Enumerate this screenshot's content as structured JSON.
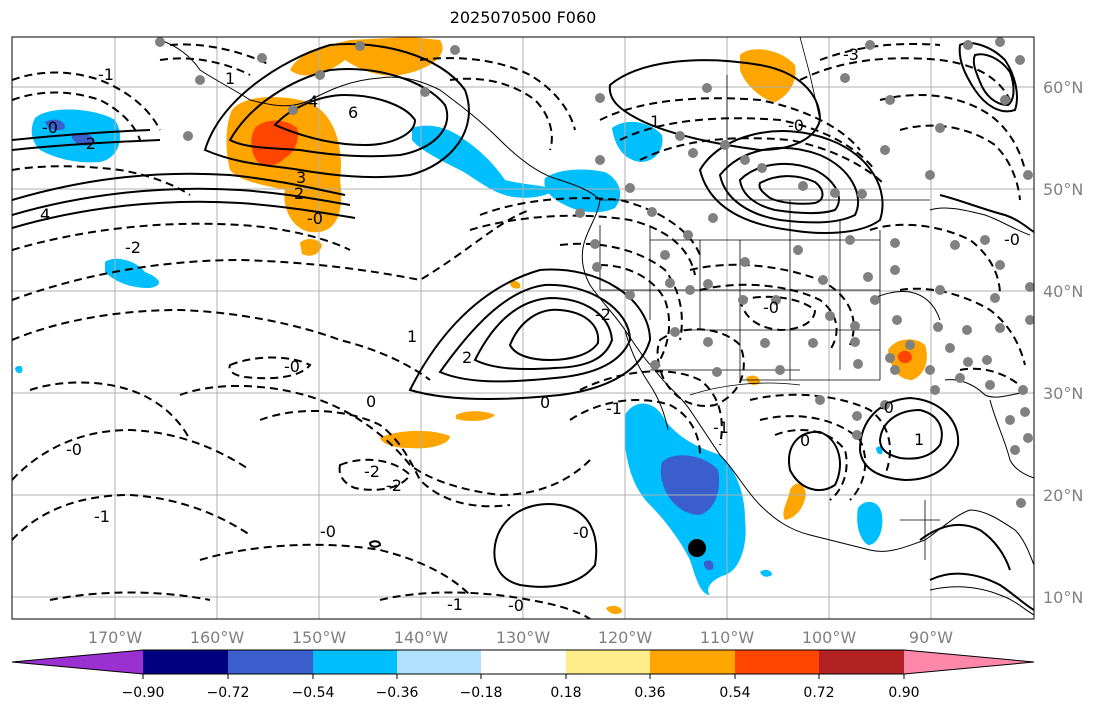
{
  "title": "2025070500 F060",
  "lon_ticks": [
    "170°W",
    "160°W",
    "150°W",
    "140°W",
    "130°W",
    "120°W",
    "110°W",
    "100°W",
    "90°W"
  ],
  "lat_ticks": [
    "60°N",
    "50°N",
    "40°N",
    "30°N",
    "20°N",
    "10°N"
  ],
  "colorbar": {
    "ticks": [
      "−0.90",
      "−0.72",
      "−0.54",
      "−0.36",
      "−0.18",
      "0.18",
      "0.36",
      "0.54",
      "0.72",
      "0.90"
    ],
    "colors": [
      "#9b30d0",
      "#000080",
      "#3a5fcd",
      "#00bfff",
      "#b0e2ff",
      "#ffffff",
      "#ffec8b",
      "#ffa500",
      "#ff4500",
      "#b22222",
      "#ff88aa"
    ]
  },
  "contour_labels": [
    {
      "text": "6"
    },
    {
      "text": "4"
    },
    {
      "text": "3"
    },
    {
      "text": "2"
    },
    {
      "text": "1"
    },
    {
      "text": "-0"
    },
    {
      "text": "-2"
    },
    {
      "text": "-1"
    },
    {
      "text": "-0"
    },
    {
      "text": "4"
    },
    {
      "text": "-2"
    },
    {
      "text": "2"
    },
    {
      "text": "1"
    },
    {
      "text": "0"
    },
    {
      "text": "-0"
    },
    {
      "text": "-2"
    },
    {
      "text": "-2"
    },
    {
      "text": "-0"
    },
    {
      "text": "-1"
    },
    {
      "text": "-0"
    },
    {
      "text": "-0"
    },
    {
      "text": "-1"
    },
    {
      "text": "1"
    },
    {
      "text": "-0"
    },
    {
      "text": "-3"
    },
    {
      "text": "-0"
    },
    {
      "text": "-0"
    },
    {
      "text": "-1"
    },
    {
      "text": "-0"
    },
    {
      "text": "0"
    },
    {
      "text": "-0"
    },
    {
      "text": "1"
    },
    {
      "text": "-2"
    },
    {
      "text": "0"
    },
    {
      "text": "-1"
    }
  ]
}
